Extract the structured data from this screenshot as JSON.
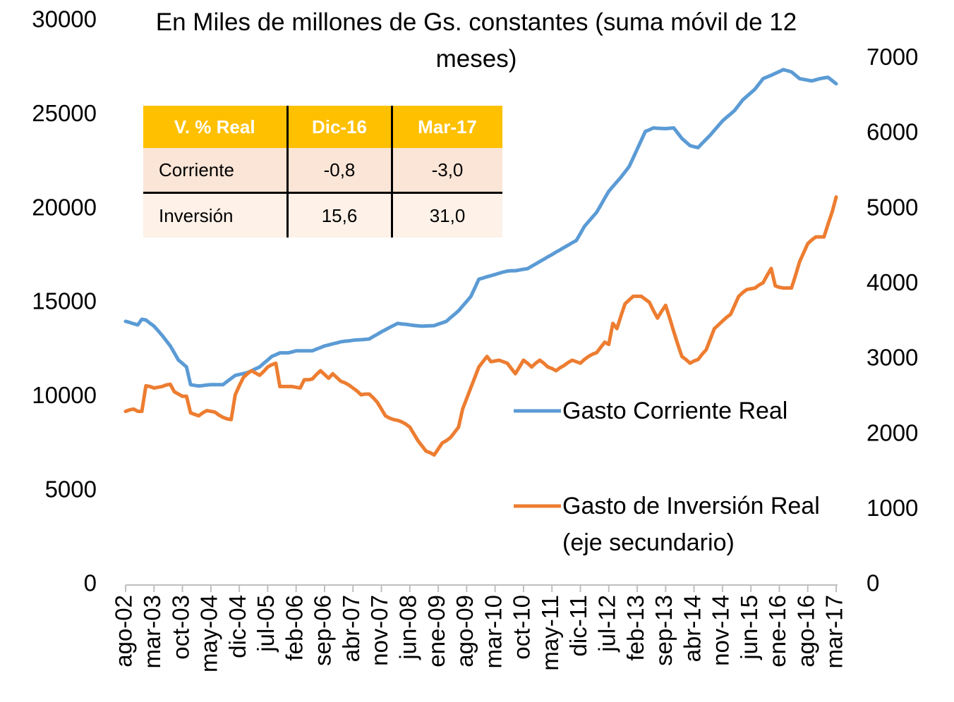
{
  "chart_data": {
    "type": "line",
    "title": "En Miles de millones de Gs. constantes (suma móvil de 12 meses)",
    "categories": [
      "ago-02",
      null,
      null,
      null,
      null,
      null,
      null,
      "mar-03",
      null,
      null,
      null,
      null,
      null,
      null,
      "oct-03",
      null,
      null,
      null,
      null,
      null,
      null,
      "may-04",
      null,
      null,
      null,
      null,
      null,
      null,
      "dic-04",
      null,
      null,
      null,
      null,
      null,
      null,
      "jul-05",
      null,
      null,
      null,
      null,
      null,
      null,
      "feb-06",
      null,
      null,
      null,
      null,
      null,
      null,
      "sep-06",
      null,
      null,
      null,
      null,
      null,
      null,
      "abr-07",
      null,
      null,
      null,
      null,
      null,
      null,
      "nov-07",
      null,
      null,
      null,
      null,
      null,
      null,
      "jun-08",
      null,
      null,
      null,
      null,
      null,
      null,
      "ene-09",
      null,
      null,
      null,
      null,
      null,
      null,
      "ago-09",
      null,
      null,
      null,
      null,
      null,
      null,
      "mar-10",
      null,
      null,
      null,
      null,
      null,
      null,
      "oct-10",
      null,
      null,
      null,
      null,
      null,
      null,
      "may-11",
      null,
      null,
      null,
      null,
      null,
      null,
      "dic-11",
      null,
      null,
      null,
      null,
      null,
      null,
      "jul-12",
      null,
      null,
      null,
      null,
      null,
      null,
      "feb-13",
      null,
      null,
      null,
      null,
      null,
      null,
      "sep-13",
      null,
      null,
      null,
      null,
      null,
      null,
      "abr-14",
      null,
      null,
      null,
      null,
      null,
      null,
      "nov-14",
      null,
      null,
      null,
      null,
      null,
      null,
      "jun-15",
      null,
      null,
      null,
      null,
      null,
      null,
      "ene-16",
      null,
      null,
      null,
      null,
      null,
      null,
      "ago-16",
      null,
      null,
      null,
      null,
      null,
      null,
      "mar-17"
    ],
    "series": [
      {
        "name": "Gasto Corriente Real",
        "color": "#5b9bd5",
        "axis": "y",
        "values": [
          14030,
          13970,
          13900,
          13840,
          14140,
          14100,
          13930,
          13770,
          13530,
          13280,
          13000,
          12720,
          12350,
          11970,
          11790,
          11600,
          10660,
          10620,
          10590,
          10610,
          10640,
          10660,
          10660,
          10660,
          10660,
          10830,
          10990,
          11150,
          11200,
          11250,
          11300,
          11400,
          11500,
          11600,
          11790,
          11970,
          12160,
          12250,
          12350,
          12350,
          12350,
          12400,
          12460,
          12460,
          12460,
          12460,
          12460,
          12550,
          12630,
          12720,
          12770,
          12830,
          12880,
          12940,
          12970,
          12990,
          13020,
          13040,
          13050,
          13070,
          13090,
          13220,
          13340,
          13470,
          13580,
          13700,
          13810,
          13920,
          13890,
          13870,
          13840,
          13810,
          13790,
          13770,
          13780,
          13790,
          13800,
          13880,
          13950,
          14030,
          14220,
          14400,
          14590,
          14840,
          15090,
          15340,
          15800,
          16270,
          16330,
          16400,
          16460,
          16520,
          16590,
          16650,
          16700,
          16720,
          16720,
          16760,
          16800,
          16830,
          16960,
          17080,
          17210,
          17330,
          17460,
          17580,
          17710,
          17830,
          17960,
          18080,
          18210,
          18330,
          18700,
          19080,
          19330,
          19580,
          19830,
          20200,
          20580,
          20950,
          21200,
          21450,
          21700,
          21980,
          22260,
          22720,
          23190,
          23660,
          24130,
          24220,
          24320,
          24300,
          24290,
          24280,
          24300,
          24320,
          24040,
          23760,
          23570,
          23380,
          23320,
          23270,
          23500,
          23720,
          23940,
          24190,
          24440,
          24690,
          24880,
          25060,
          25250,
          25530,
          25810,
          26000,
          26190,
          26380,
          26660,
          26940,
          27030,
          27120,
          27220,
          27320,
          27420,
          27360,
          27300,
          27120,
          26940,
          26900,
          26860,
          26820,
          26880,
          26940,
          26980,
          27010,
          26840,
          26670
        ]
      },
      {
        "name": "Gasto de Inversión Real (eje secundario)",
        "color": "#ed7d31",
        "axis": "y2",
        "values": [
          2310,
          2330,
          2340,
          2310,
          2310,
          2650,
          2640,
          2620,
          2630,
          2640,
          2660,
          2670,
          2570,
          2540,
          2510,
          2510,
          2290,
          2270,
          2250,
          2290,
          2320,
          2310,
          2300,
          2260,
          2230,
          2210,
          2200,
          2530,
          2650,
          2760,
          2810,
          2850,
          2820,
          2790,
          2840,
          2900,
          2930,
          2950,
          2640,
          2640,
          2640,
          2640,
          2630,
          2620,
          2730,
          2730,
          2740,
          2800,
          2850,
          2800,
          2750,
          2810,
          2760,
          2710,
          2690,
          2660,
          2620,
          2580,
          2530,
          2540,
          2540,
          2490,
          2430,
          2340,
          2250,
          2220,
          2200,
          2190,
          2170,
          2140,
          2100,
          2010,
          1920,
          1850,
          1780,
          1760,
          1730,
          1810,
          1890,
          1920,
          1960,
          2030,
          2100,
          2340,
          2480,
          2620,
          2760,
          2900,
          2970,
          3040,
          2970,
          2980,
          2990,
          2970,
          2950,
          2880,
          2810,
          2900,
          2990,
          2950,
          2900,
          2950,
          2990,
          2950,
          2900,
          2880,
          2850,
          2890,
          2920,
          2960,
          2990,
          2970,
          2950,
          3000,
          3040,
          3070,
          3090,
          3160,
          3230,
          3200,
          3480,
          3410,
          3580,
          3740,
          3790,
          3840,
          3840,
          3840,
          3800,
          3760,
          3650,
          3550,
          3640,
          3720,
          3550,
          3370,
          3200,
          3040,
          3000,
          2950,
          2980,
          3000,
          3070,
          3130,
          3270,
          3410,
          3460,
          3510,
          3560,
          3600,
          3720,
          3840,
          3890,
          3930,
          3940,
          3950,
          3990,
          4020,
          4120,
          4210,
          3980,
          3960,
          3950,
          3950,
          3950,
          4120,
          4300,
          4420,
          4540,
          4590,
          4630,
          4630,
          4630,
          4800,
          4960,
          5160
        ]
      }
    ],
    "ylim": [
      0,
      30000
    ],
    "yticks": [
      0,
      5000,
      10000,
      15000,
      20000,
      25000,
      30000
    ],
    "y2lim": [
      0,
      7500
    ],
    "y2ticks": [
      0,
      1000,
      2000,
      3000,
      4000,
      5000,
      6000,
      7000
    ],
    "grid": false,
    "legend": "right",
    "table": {
      "header": [
        "V. % Real",
        "Dic-16",
        "Mar-17"
      ],
      "rows": [
        [
          "Corriente",
          "-0,8",
          "-3,0"
        ],
        [
          "Inversión",
          "15,6",
          "31,0"
        ]
      ]
    }
  }
}
